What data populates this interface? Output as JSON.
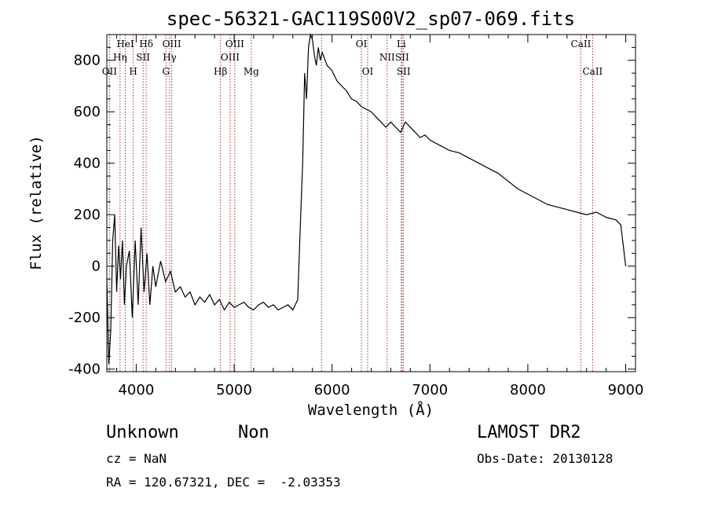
{
  "chart_data": {
    "type": "line",
    "title": "spec-56321-GAC119S00V2_sp07-069.fits",
    "xlabel": "Wavelength (Å)",
    "ylabel": "Flux (relative)",
    "xlim": [
      3700,
      9100
    ],
    "ylim": [
      -410,
      900
    ],
    "x_ticks": [
      4000,
      5000,
      6000,
      7000,
      8000,
      9000
    ],
    "y_ticks": [
      -400,
      -200,
      0,
      200,
      400,
      600,
      800
    ],
    "grid": false,
    "line_color": "#000000",
    "marker_color": "#b03030",
    "series": [
      {
        "x": [
          3700,
          3720,
          3740,
          3760,
          3780,
          3800,
          3820,
          3840,
          3860,
          3880,
          3900,
          3930,
          3960,
          3990,
          4020,
          4050,
          4080,
          4110,
          4140,
          4170,
          4200,
          4250,
          4300,
          4350,
          4400,
          4450,
          4500,
          4550,
          4600,
          4650,
          4700,
          4750,
          4800,
          4850,
          4900,
          4950,
          5000,
          5050,
          5100,
          5150,
          5200,
          5250,
          5300,
          5350,
          5400,
          5450,
          5500,
          5550,
          5600,
          5650,
          5680,
          5700,
          5720,
          5740,
          5760,
          5780,
          5800,
          5820,
          5840,
          5860,
          5880,
          5900,
          5950,
          6000,
          6050,
          6100,
          6150,
          6200,
          6250,
          6300,
          6350,
          6400,
          6450,
          6500,
          6550,
          6600,
          6650,
          6700,
          6750,
          6800,
          6850,
          6900,
          6950,
          7000,
          7100,
          7200,
          7300,
          7400,
          7500,
          7600,
          7700,
          7800,
          7900,
          8000,
          8100,
          8200,
          8300,
          8400,
          8500,
          8600,
          8700,
          8800,
          8900,
          8950,
          9000
        ],
        "y": [
          -50,
          -380,
          -250,
          100,
          200,
          -100,
          80,
          -50,
          100,
          -150,
          0,
          60,
          -200,
          100,
          -150,
          150,
          -100,
          50,
          -150,
          0,
          -80,
          20,
          -60,
          -20,
          -100,
          -80,
          -120,
          -100,
          -150,
          -120,
          -140,
          -110,
          -150,
          -130,
          -170,
          -140,
          -160,
          -150,
          -140,
          -160,
          -170,
          -150,
          -140,
          -160,
          -150,
          -170,
          -160,
          -150,
          -170,
          -130,
          200,
          400,
          750,
          650,
          850,
          900,
          880,
          820,
          780,
          850,
          800,
          830,
          780,
          760,
          720,
          700,
          680,
          650,
          640,
          620,
          610,
          600,
          580,
          560,
          540,
          560,
          540,
          520,
          560,
          540,
          520,
          500,
          510,
          490,
          470,
          450,
          440,
          420,
          400,
          380,
          360,
          330,
          300,
          280,
          260,
          240,
          230,
          220,
          210,
          200,
          210,
          190,
          180,
          160,
          0
        ]
      }
    ],
    "line_markers": [
      {
        "wavelength": 3727,
        "label": "OII",
        "row": 3
      },
      {
        "wavelength": 3835,
        "label": "Hη",
        "row": 2
      },
      {
        "wavelength": 3889,
        "label": "HeI",
        "row": 1
      },
      {
        "wavelength": 3970,
        "label": "H",
        "row": 3
      },
      {
        "wavelength": 4070,
        "label": "SII",
        "row": 2
      },
      {
        "wavelength": 4102,
        "label": "Hδ",
        "row": 1
      },
      {
        "wavelength": 4304,
        "label": "G",
        "row": 3
      },
      {
        "wavelength": 4341,
        "label": "Hγ",
        "row": 2
      },
      {
        "wavelength": 4363,
        "label": "OIII",
        "row": 1
      },
      {
        "wavelength": 4861,
        "label": "Hβ",
        "row": 3
      },
      {
        "wavelength": 4959,
        "label": "OIII",
        "row": 2
      },
      {
        "wavelength": 5007,
        "label": "OIII",
        "row": 1
      },
      {
        "wavelength": 5175,
        "label": "Mg",
        "row": 3
      },
      {
        "wavelength": 5893,
        "label": "",
        "row": 0
      },
      {
        "wavelength": 6300,
        "label": "OI",
        "row": 1
      },
      {
        "wavelength": 6364,
        "label": "OI",
        "row": 3
      },
      {
        "wavelength": 6563,
        "label": "NII",
        "row": 2
      },
      {
        "wavelength": 6708,
        "label": "Li",
        "row": 1
      },
      {
        "wavelength": 6716,
        "label": "SII",
        "row": 2
      },
      {
        "wavelength": 6731,
        "label": "SII",
        "row": 3
      },
      {
        "wavelength": 8542,
        "label": "CaII",
        "row": 1
      },
      {
        "wavelength": 8662,
        "label": "CaII",
        "row": 3
      }
    ]
  },
  "info": {
    "class_label": "Unknown",
    "subclass_label": "Non",
    "survey": "LAMOST DR2",
    "cz": "cz = NaN",
    "obs_date": "Obs-Date: 20130128",
    "radec": "RA = 120.67321, DEC =  -2.03353"
  }
}
